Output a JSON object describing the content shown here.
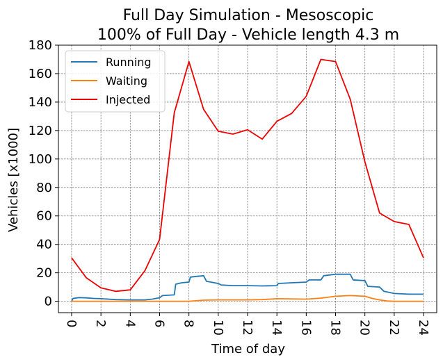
{
  "chart_data": {
    "type": "line",
    "title": [
      "Full Day Simulation - Mesoscopic",
      "100% of Full Day - Vehicle length 4.3 m"
    ],
    "xlabel": "Time of day",
    "ylabel": "Vehicles [x1000]",
    "xlim": [
      -0.9,
      24.9
    ],
    "ylim": [
      -8,
      180
    ],
    "xticks": [
      0,
      2,
      4,
      6,
      8,
      10,
      12,
      14,
      16,
      18,
      20,
      22,
      24
    ],
    "xtick_labels": [
      "0",
      "2",
      "4",
      "6",
      "8",
      "10",
      "12",
      "14",
      "16",
      "18",
      "20",
      "22",
      "24"
    ],
    "yticks": [
      0,
      20,
      40,
      60,
      80,
      100,
      120,
      140,
      160,
      180
    ],
    "ytick_labels": [
      "0",
      "20",
      "40",
      "60",
      "80",
      "100",
      "120",
      "140",
      "160",
      "180"
    ],
    "grid": true,
    "legend": "top-left",
    "series": [
      {
        "name": "Running",
        "color": "#1f77b4",
        "points": [
          [
            0,
            0
          ],
          [
            0.1,
            2
          ],
          [
            0.5,
            2.6
          ],
          [
            1,
            2.4
          ],
          [
            1.5,
            2
          ],
          [
            2,
            1.8
          ],
          [
            3,
            1.2
          ],
          [
            4,
            1
          ],
          [
            5,
            1
          ],
          [
            5.5,
            1.5
          ],
          [
            6,
            2.5
          ],
          [
            6.2,
            4
          ],
          [
            7,
            4.5
          ],
          [
            7.1,
            12
          ],
          [
            7.5,
            13
          ],
          [
            8,
            13.5
          ],
          [
            8.1,
            17
          ],
          [
            8.5,
            17.5
          ],
          [
            9,
            18
          ],
          [
            9.2,
            14
          ],
          [
            10,
            12.5
          ],
          [
            10.2,
            11.5
          ],
          [
            11,
            11
          ],
          [
            12,
            11
          ],
          [
            13,
            10.8
          ],
          [
            14,
            11
          ],
          [
            14.1,
            12.5
          ],
          [
            15,
            13
          ],
          [
            16,
            13.5
          ],
          [
            16.2,
            15
          ],
          [
            17,
            15
          ],
          [
            17.2,
            18
          ],
          [
            18,
            19
          ],
          [
            19,
            19
          ],
          [
            19.2,
            15
          ],
          [
            20,
            14.5
          ],
          [
            20.2,
            10.5
          ],
          [
            21,
            10
          ],
          [
            21.3,
            7
          ],
          [
            22,
            5.5
          ],
          [
            23,
            5
          ],
          [
            24,
            5
          ]
        ]
      },
      {
        "name": "Waiting",
        "color": "#ff7f0e",
        "points": [
          [
            0,
            0
          ],
          [
            8,
            0
          ],
          [
            9,
            0.8
          ],
          [
            10,
            1
          ],
          [
            12,
            1
          ],
          [
            13,
            1.2
          ],
          [
            14,
            1.8
          ],
          [
            16,
            1.5
          ],
          [
            17,
            2.2
          ],
          [
            18,
            3.5
          ],
          [
            19,
            4
          ],
          [
            20,
            3.5
          ],
          [
            20.5,
            2
          ],
          [
            21,
            1
          ],
          [
            21.5,
            0.2
          ],
          [
            22,
            0
          ],
          [
            24,
            0
          ]
        ]
      },
      {
        "name": "Injected",
        "color": "#ee0000",
        "points": [
          [
            0,
            30.5
          ],
          [
            1,
            16.5
          ],
          [
            2,
            9.5
          ],
          [
            3,
            7
          ],
          [
            4,
            8
          ],
          [
            5,
            21.5
          ],
          [
            6,
            43.5
          ],
          [
            7,
            132.5
          ],
          [
            8,
            168.5
          ],
          [
            9,
            135
          ],
          [
            10,
            119.5
          ],
          [
            11,
            117.5
          ],
          [
            12,
            120.5
          ],
          [
            13,
            114
          ],
          [
            14,
            126.5
          ],
          [
            15,
            132
          ],
          [
            16,
            144
          ],
          [
            17,
            170
          ],
          [
            18,
            168.5
          ],
          [
            19,
            142
          ],
          [
            20,
            98
          ],
          [
            21,
            62
          ],
          [
            22,
            56
          ],
          [
            23,
            54
          ],
          [
            24,
            30.5
          ]
        ]
      }
    ]
  }
}
